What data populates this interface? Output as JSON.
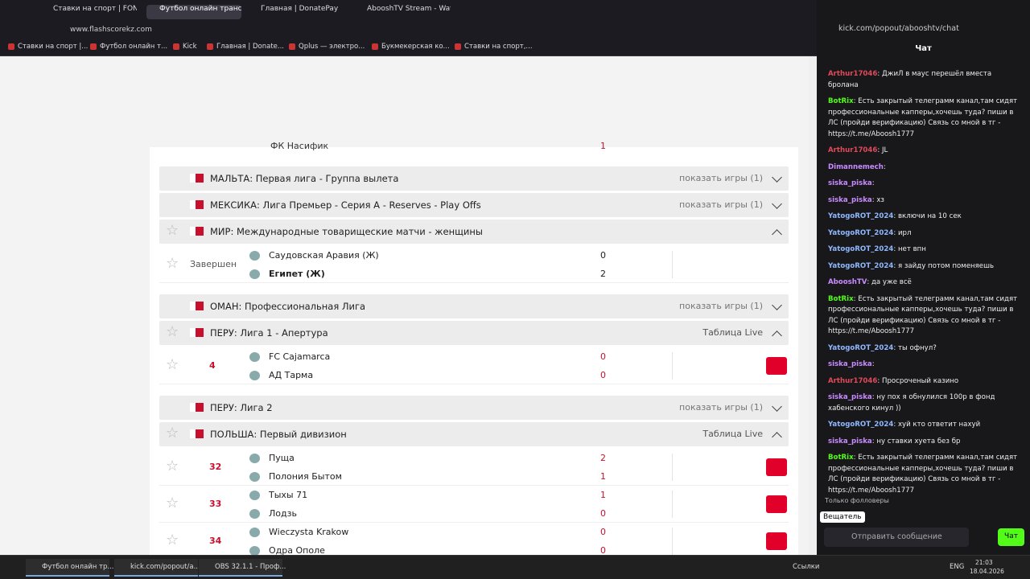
{
  "browser": {
    "tabs": [
      "Ставки на спорт | FON.BE",
      "Футбол онлайн трансляц",
      "Главная | DonatePay",
      "AbooshTV Stream - Watch"
    ],
    "url": "www.flashscorekz.com",
    "bookmarks": [
      "Ставки на спорт |...",
      "Футбол онлайн т...",
      "Kick",
      "Главная | Donate...",
      "Qplus — электро...",
      "Букмекерская ко...",
      "Ставки на спорт,..."
    ]
  },
  "top_cut": {
    "team": "ФК Насифик",
    "score": 1
  },
  "leagues": [
    {
      "name": "МАЛЬТА: Первая лига - Группа вылета",
      "action": "показать игры (1)"
    },
    {
      "name": "МЕКСИКА: Лига Премьер - Серия A - Reserves - Play Offs",
      "action": "показать игры (1)"
    },
    {
      "name": "МИР: Международные товарищеские матчи - женщины",
      "matches": [
        {
          "status": "Завершен",
          "home": "Саудовская Аравия (Ж)",
          "away": "Египет (Ж)",
          "home_score": 0,
          "away_score": 2
        }
      ]
    },
    {
      "name": "ОМАН: Профессиональная Лига",
      "action": "показать игры (1)"
    },
    {
      "name": "ПЕРУ: Лига 1 - Апертура",
      "action": "Таблица Live",
      "matches": [
        {
          "minute": 4,
          "home": "FC Cajamarca",
          "away": "АД Тарма",
          "home_score": 0,
          "away_score": 0
        }
      ]
    },
    {
      "name": "ПЕРУ: Лига 2",
      "action": "показать игры (1)"
    },
    {
      "name": "ПОЛЬША: Первый дивизион",
      "action": "Таблица Live",
      "matches": [
        {
          "minute": 32,
          "home": "Пуща",
          "away": "Полония Бытом",
          "home_score": 2,
          "away_score": 1
        },
        {
          "minute": 33,
          "home": "Тыхы 71",
          "away": "Лодзь",
          "home_score": 1,
          "away_score": 0
        },
        {
          "minute": 34,
          "home": "Wieczysta Krakow",
          "away": "Одра Ополе",
          "home_score": 0,
          "away_score": 0
        }
      ]
    }
  ],
  "chat": {
    "url": "kick.com/popout/abooshtv/chat",
    "title": "Чат",
    "messages": [
      {
        "user": "Arthur17046",
        "text": ": ДжиЛ в маус перешёл вместа бролана"
      },
      {
        "user": "BotRix",
        "text": ": Есть закрытый телеграмм канал,там сидят профессиональные капперы,хочешь туда? пиши в ЛС (пройди верификацию) Связь со мной в тг - https://t.me/Aboosh1777"
      },
      {
        "user": "Arthur17046",
        "text": ": JL"
      },
      {
        "user": "Dimannemech",
        "text": ":"
      },
      {
        "user": "siska_piska",
        "text": ":"
      },
      {
        "user": "siska_piska",
        "text": ": хз"
      },
      {
        "user": "YatogoROT_2024",
        "text": ": включи на 10 сек"
      },
      {
        "user": "YatogoROT_2024",
        "text": ": ирл"
      },
      {
        "user": "YatogoROT_2024",
        "text": ": нет впн"
      },
      {
        "user": "YatogoROT_2024",
        "text": ": я зайду потом поменяешь"
      },
      {
        "user": "AbooshTV",
        "text": ": да уже всё"
      },
      {
        "user": "BotRix",
        "text": ": Есть закрытый телеграмм канал,там сидят профессиональные капперы,хочешь туда? пиши в ЛС (пройди верификацию) Связь со мной в тг - https://t.me/Aboosh1777"
      },
      {
        "user": "YatogoROT_2024",
        "text": ": ты офнул?"
      },
      {
        "user": "siska_piska",
        "text": ":"
      },
      {
        "user": "Arthur17046",
        "text": ": Просроченый казино"
      },
      {
        "user": "siska_piska",
        "text": ": ну пох я обнулился 100р в фонд хабенского кинул ))"
      },
      {
        "user": "YatogoROT_2024",
        "text": ": хуй кто ответит нахуй"
      },
      {
        "user": "siska_piska",
        "text": ": ну ставки хуета без бр"
      },
      {
        "user": "BotRix",
        "text": ": Есть закрытый телеграмм канал,там сидят профессиональные капперы,хочешь туда? пиши в ЛС (пройди верификацию) Связь со мной в тг - https://t.me/Aboosh1777"
      }
    ],
    "followers_only": "Только фолловеры",
    "role": "Вещатель",
    "placeholder": "Отправить сообщение",
    "send": "Чат"
  },
  "taskbar": {
    "items": [
      "Футбол онлайн тр...",
      "kick.com/popout/a...",
      "OBS 32.1.1 - Проф..."
    ],
    "links": "Ссылки",
    "lang": "ENG",
    "time": "21:03",
    "date": "18.04.2026"
  }
}
